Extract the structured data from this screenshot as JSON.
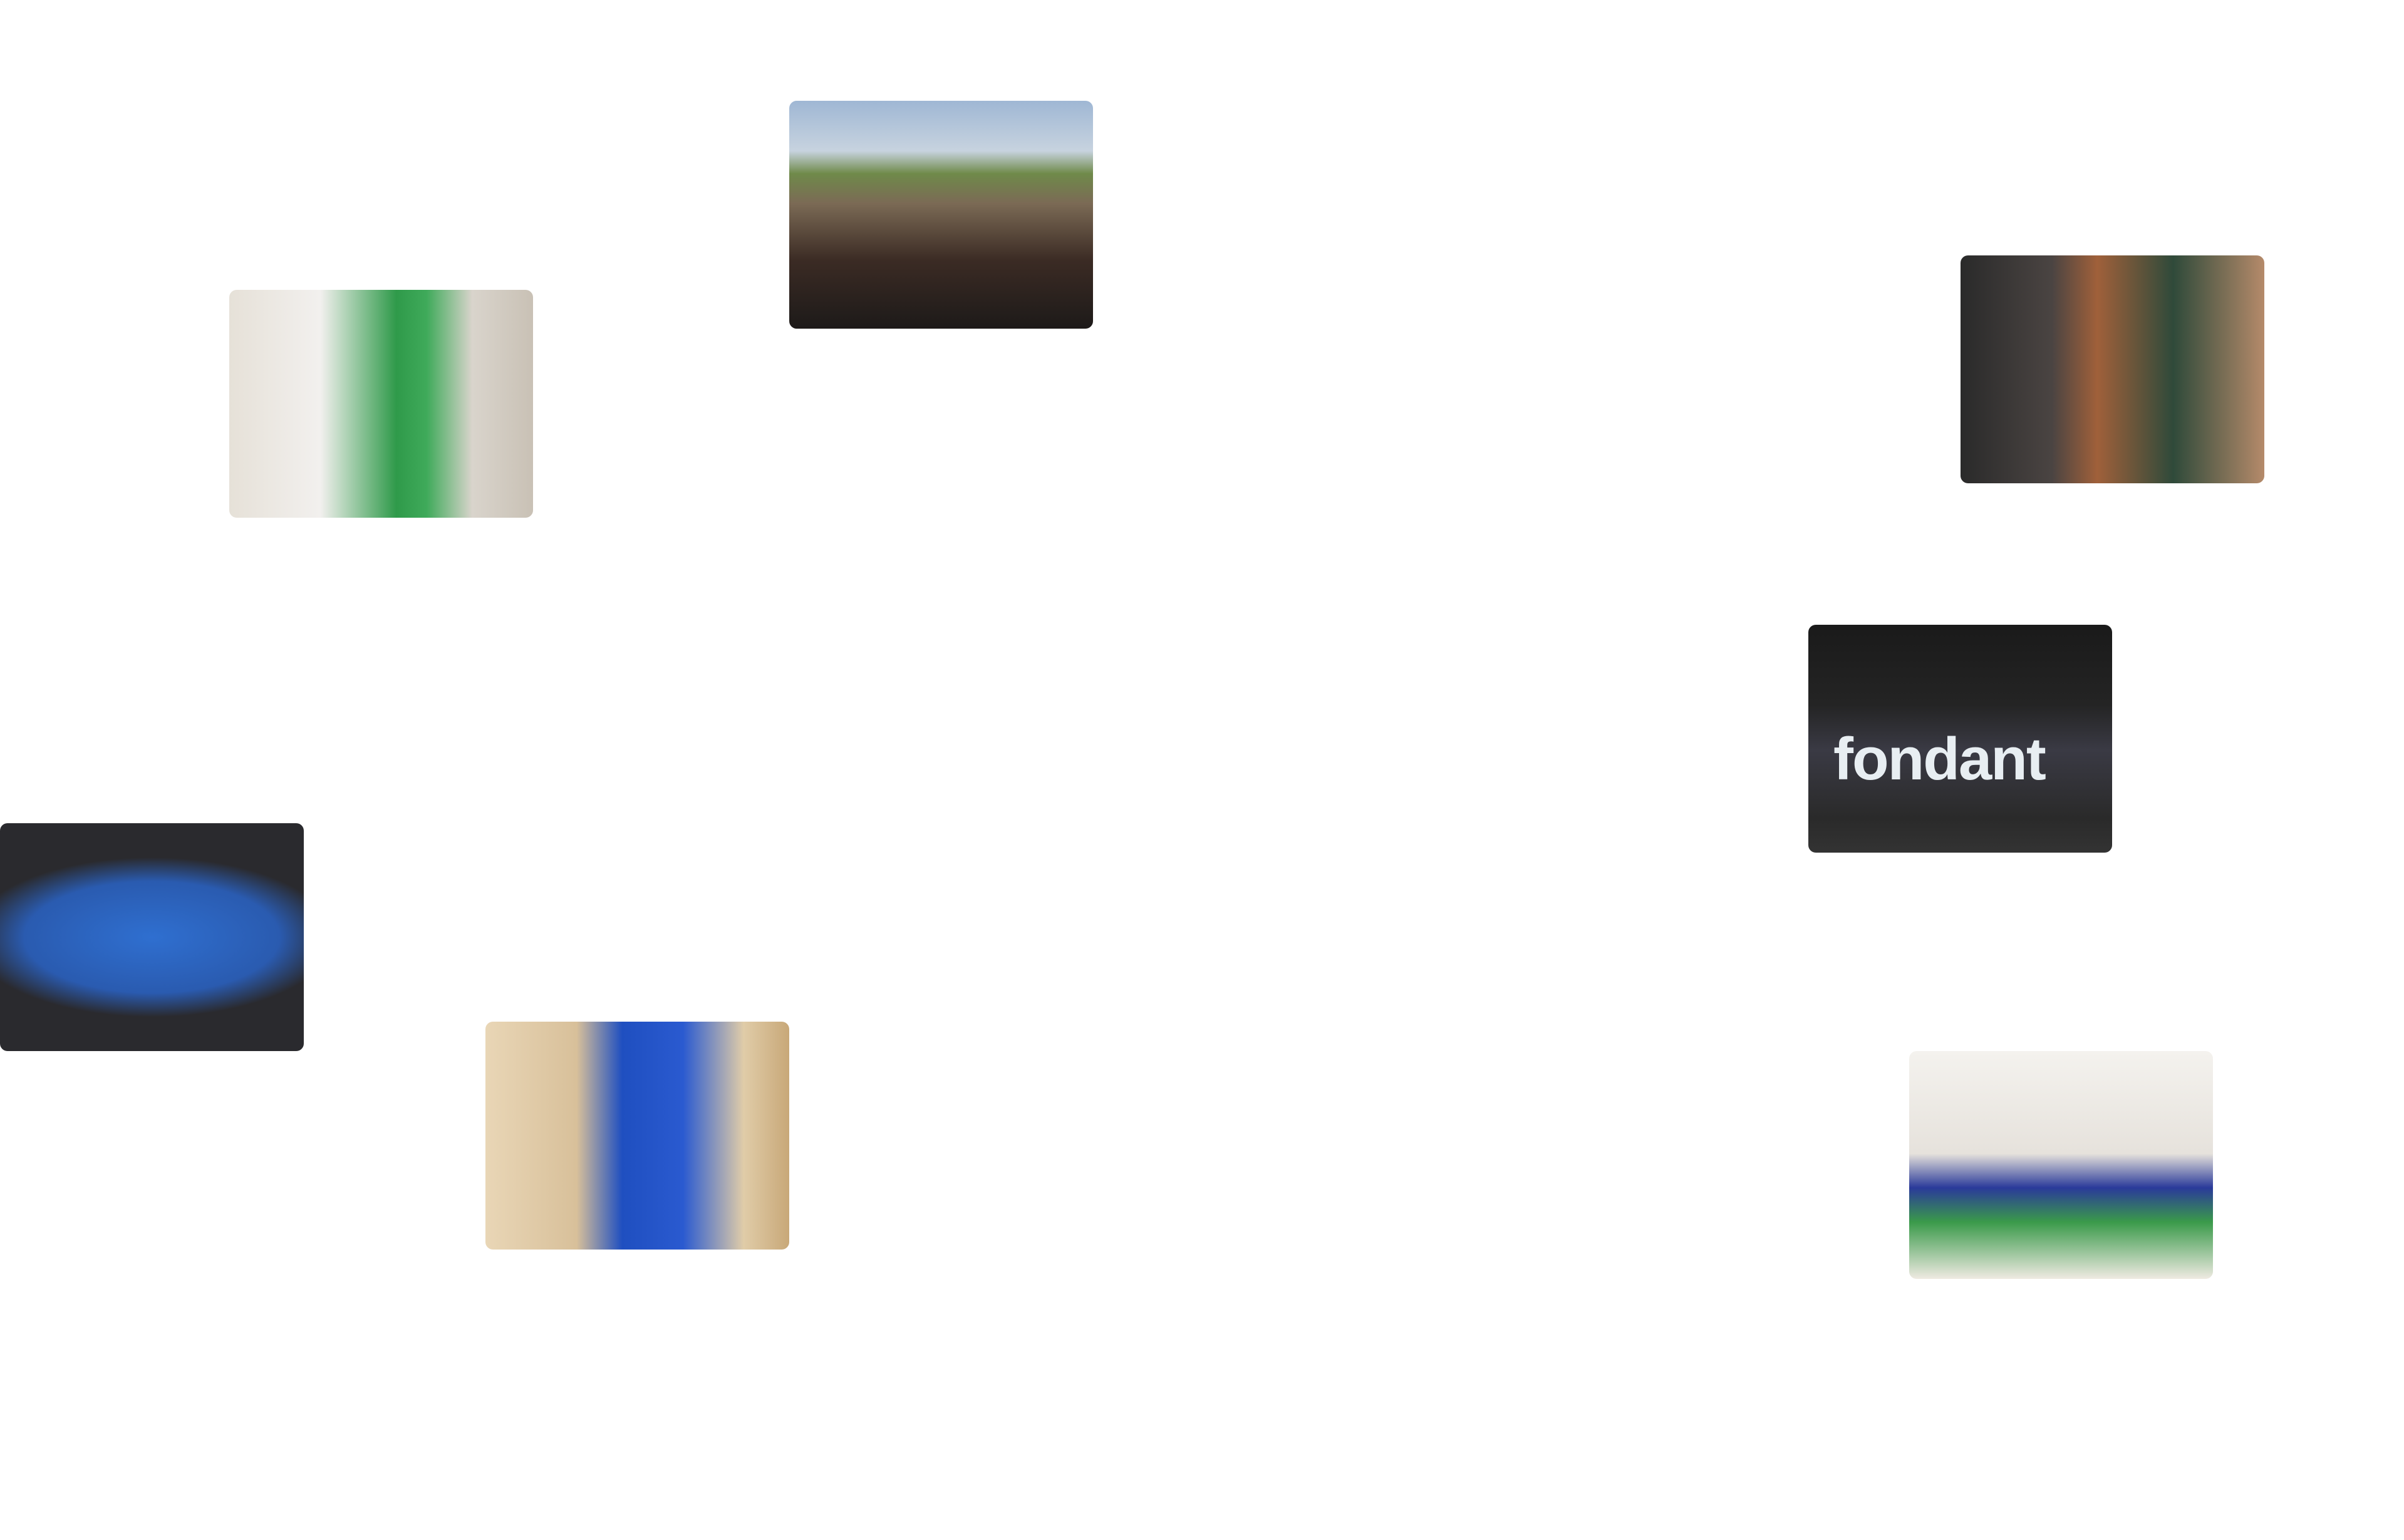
{
  "photos": {
    "fondant_sign": "fondant"
  }
}
